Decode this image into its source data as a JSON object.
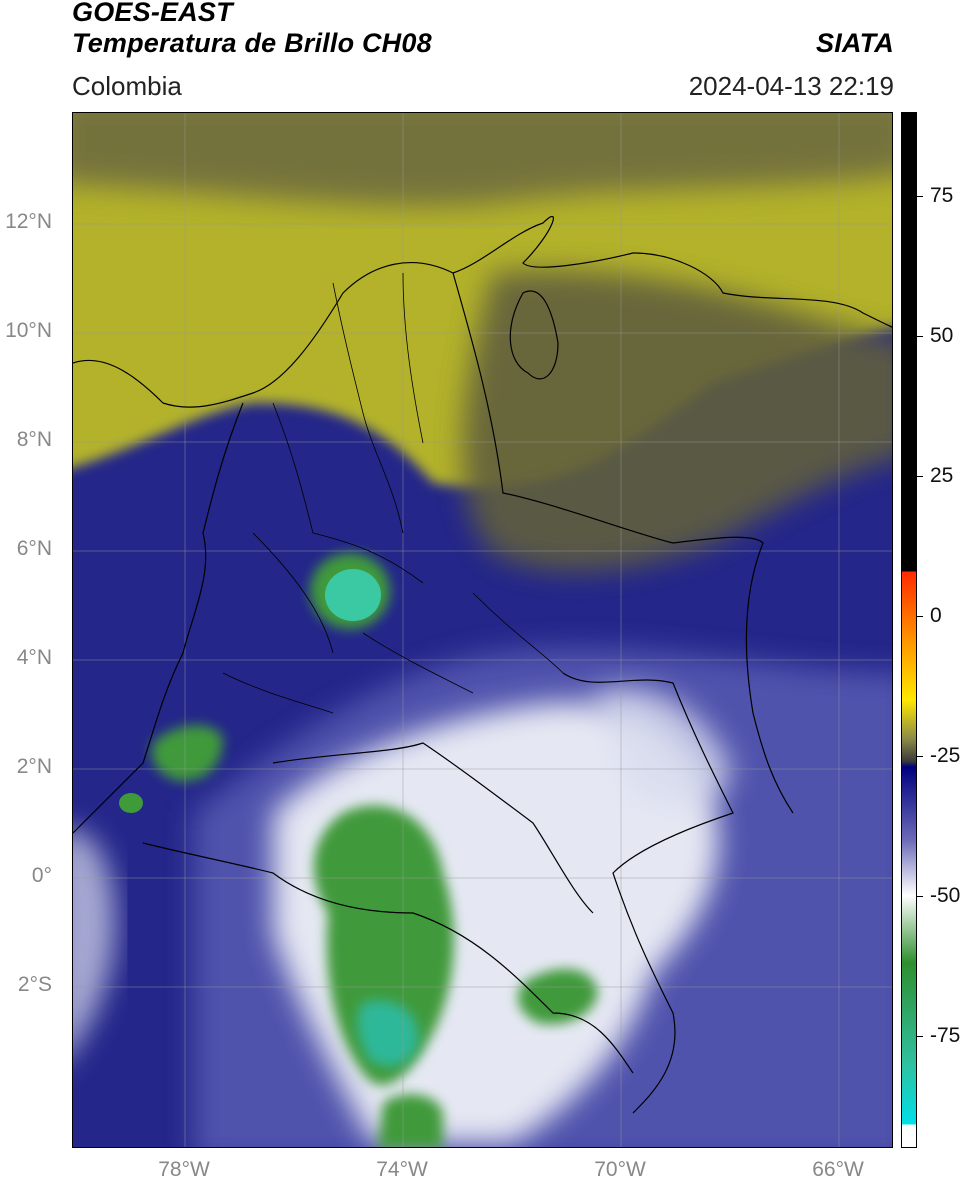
{
  "header": {
    "title_line1": "GOES-EAST",
    "title_line2": "Temperatura de Brillo CH08",
    "brand": "SIATA",
    "region": "Colombia",
    "datetime": "2024-04-13 22:19"
  },
  "map": {
    "lat_labels": [
      "12°N",
      "10°N",
      "8°N",
      "6°N",
      "4°N",
      "2°N",
      "0°",
      "2°S"
    ],
    "lon_labels": [
      "78°W",
      "74°W",
      "70°W",
      "66°W"
    ],
    "colors": {
      "warm_olive": "#b6b52a",
      "dark_olive": "#5e5b3c",
      "deep_blue": "#1a1d7a",
      "mid_blue": "#4a4da8",
      "cloud_white": "#f2f3f8",
      "cold_green": "#3f9a3a",
      "coldest_teal": "#2fc0a0"
    }
  },
  "colorbar": {
    "unit_values": [
      "75",
      "50",
      "25",
      "0",
      "-25",
      "-50",
      "-75"
    ],
    "range": [
      -95,
      90
    ],
    "stops": [
      {
        "value": 90,
        "color": "#000000"
      },
      {
        "value": 8,
        "color": "#000000"
      },
      {
        "value": 8,
        "color": "#ff2a00"
      },
      {
        "value": -5,
        "color": "#ff9a00"
      },
      {
        "value": -15,
        "color": "#ffe800"
      },
      {
        "value": -22,
        "color": "#8a8a4a"
      },
      {
        "value": -26,
        "color": "#3a3a3a"
      },
      {
        "value": -27,
        "color": "#000080"
      },
      {
        "value": -40,
        "color": "#6a6ab8"
      },
      {
        "value": -50,
        "color": "#ffffff"
      },
      {
        "value": -62,
        "color": "#2f8f2f"
      },
      {
        "value": -80,
        "color": "#30c0a0"
      },
      {
        "value": -91,
        "color": "#00e0e8"
      },
      {
        "value": -91,
        "color": "#ffffff"
      },
      {
        "value": -95,
        "color": "#ffffff"
      }
    ]
  }
}
